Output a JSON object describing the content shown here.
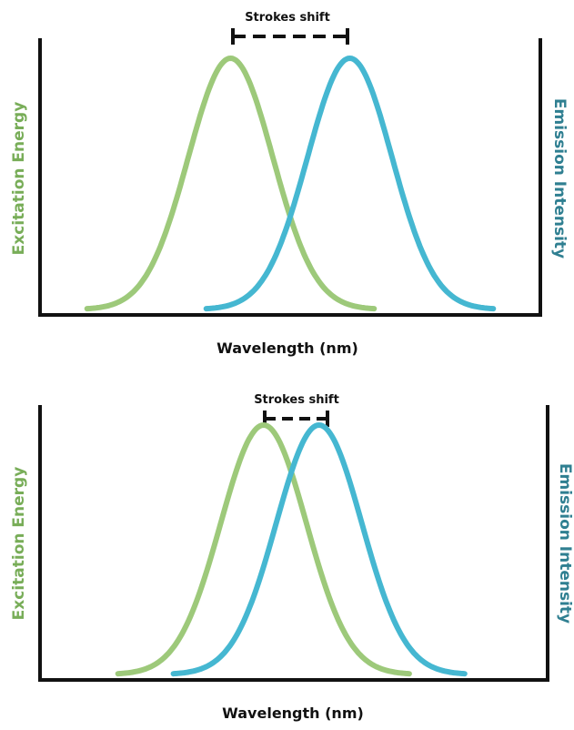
{
  "panels": [
    {
      "shift_label": "Strokes shift",
      "ylabel_left": "Excitation Energy",
      "ylabel_right": "Emission Intensity",
      "xlabel": "Wavelength (nm)",
      "excitation_peak": 0.38,
      "emission_peak": 0.62,
      "width": 0.085
    },
    {
      "shift_label": "Strokes shift",
      "ylabel_left": "Excitation Energy",
      "ylabel_right": "Emission Intensity",
      "xlabel": "Wavelength (nm)",
      "excitation_peak": 0.44,
      "emission_peak": 0.55,
      "width": 0.085
    }
  ],
  "colors": {
    "excitation": "#9dc97a",
    "emission": "#45b7d1",
    "ylabel_left": "#78ad58",
    "ylabel_right": "#2f7f91",
    "axis": "#111111"
  }
}
